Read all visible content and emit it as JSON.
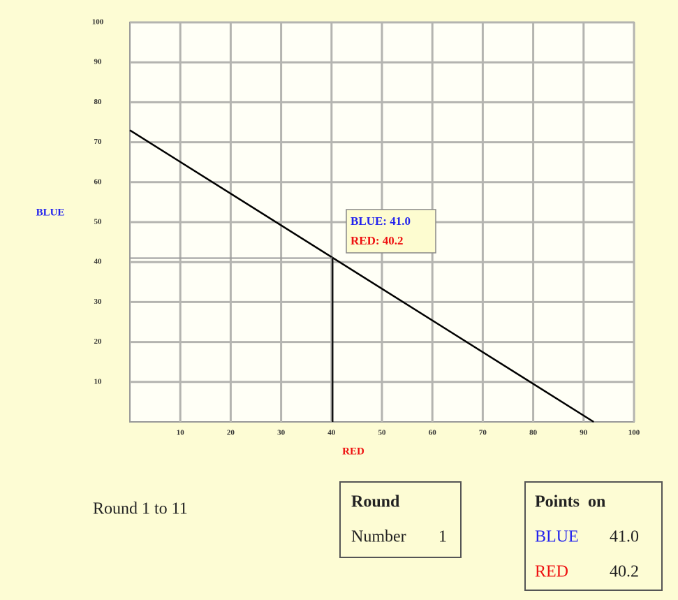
{
  "chart_data": {
    "type": "line",
    "xlabel": "RED",
    "ylabel": "BLUE",
    "x": [
      0,
      92
    ],
    "values": [
      73,
      0
    ],
    "color": "#000000",
    "xlim": [
      0,
      100
    ],
    "ylim": [
      0,
      100
    ],
    "xticks": [
      10,
      20,
      30,
      40,
      50,
      60,
      70,
      80,
      90,
      100
    ],
    "yticks": [
      10,
      20,
      30,
      40,
      50,
      60,
      70,
      80,
      90,
      100
    ],
    "grid": true,
    "marker": {
      "x": 40.2,
      "y": 41.0
    },
    "annotations": [
      "BLUE: 41.0",
      "RED: 40.2"
    ]
  },
  "round_text": "Round 1 to 11",
  "round_panel": {
    "title": "Round",
    "label": "Number",
    "value": "1"
  },
  "points_panel": {
    "title": "Points  on",
    "rows": [
      {
        "name": "BLUE",
        "value": "41.0"
      },
      {
        "name": "RED",
        "value": "40.2"
      }
    ]
  }
}
